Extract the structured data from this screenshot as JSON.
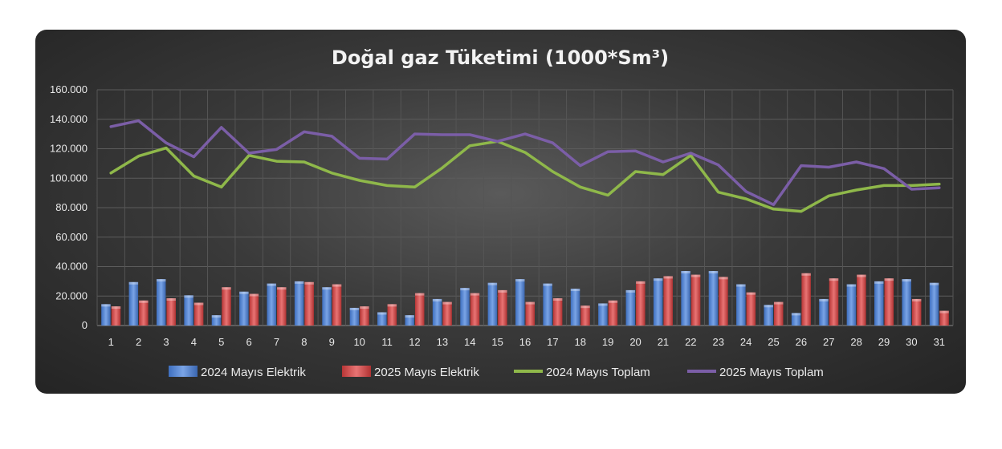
{
  "chart_data": {
    "type": "bar",
    "title": "Doğal gaz Tüketimi (1000*Sm³)",
    "xlabel": "",
    "ylabel": "",
    "ylim": [
      0,
      160000
    ],
    "y_ticks": [
      "0",
      "20.000",
      "40.000",
      "60.000",
      "80.000",
      "100.000",
      "120.000",
      "140.000",
      "160.000"
    ],
    "y_tick_values": [
      0,
      20000,
      40000,
      60000,
      80000,
      100000,
      120000,
      140000,
      160000
    ],
    "grid": true,
    "legend_position": "bottom",
    "categories": [
      "1",
      "2",
      "3",
      "4",
      "5",
      "6",
      "7",
      "8",
      "9",
      "10",
      "11",
      "12",
      "13",
      "14",
      "15",
      "16",
      "17",
      "18",
      "19",
      "20",
      "21",
      "22",
      "23",
      "24",
      "25",
      "26",
      "27",
      "28",
      "29",
      "30",
      "31"
    ],
    "series": [
      {
        "name": "2024 Mayıs Elektrik",
        "kind": "bar",
        "color": "#4f81d0",
        "values": [
          14500,
          29500,
          31500,
          20500,
          7000,
          23000,
          28500,
          30000,
          26000,
          12000,
          9000,
          7000,
          18000,
          25500,
          29000,
          31500,
          28500,
          25000,
          15000,
          24000,
          32000,
          37000,
          37000,
          28000,
          14000,
          8500,
          18000,
          28000,
          30000,
          31500,
          29000
        ]
      },
      {
        "name": "2025 Mayıs Elektrik",
        "kind": "bar",
        "color": "#d04a4a",
        "values": [
          13000,
          17000,
          18500,
          15500,
          26000,
          21500,
          26000,
          29500,
          28000,
          13000,
          14500,
          22000,
          16000,
          22000,
          24000,
          16000,
          18500,
          13500,
          17000,
          30000,
          33500,
          34500,
          33000,
          22500,
          16000,
          35500,
          32000,
          34500,
          32000,
          18000,
          10000
        ]
      },
      {
        "name": "2024 Mayıs Toplam",
        "kind": "line",
        "color": "#8fb84a",
        "values": [
          103500,
          115000,
          120500,
          101500,
          94000,
          115500,
          111500,
          111000,
          103500,
          98500,
          95000,
          94000,
          107000,
          122000,
          125000,
          117500,
          104500,
          94000,
          88500,
          104500,
          102500,
          115500,
          90500,
          86000,
          79000,
          77500,
          88000,
          92000,
          95000,
          95000,
          96000
        ]
      },
      {
        "name": "2025 Mayıs Toplam",
        "kind": "line",
        "color": "#7b5ea7",
        "values": [
          135000,
          139000,
          124000,
          114500,
          134500,
          117000,
          119500,
          131500,
          128500,
          113500,
          113000,
          130000,
          129500,
          129500,
          125000,
          130000,
          124000,
          108500,
          118000,
          118500,
          111000,
          117000,
          109000,
          91000,
          82000,
          108500,
          107500,
          111000,
          106500,
          92500,
          93500
        ]
      }
    ]
  }
}
